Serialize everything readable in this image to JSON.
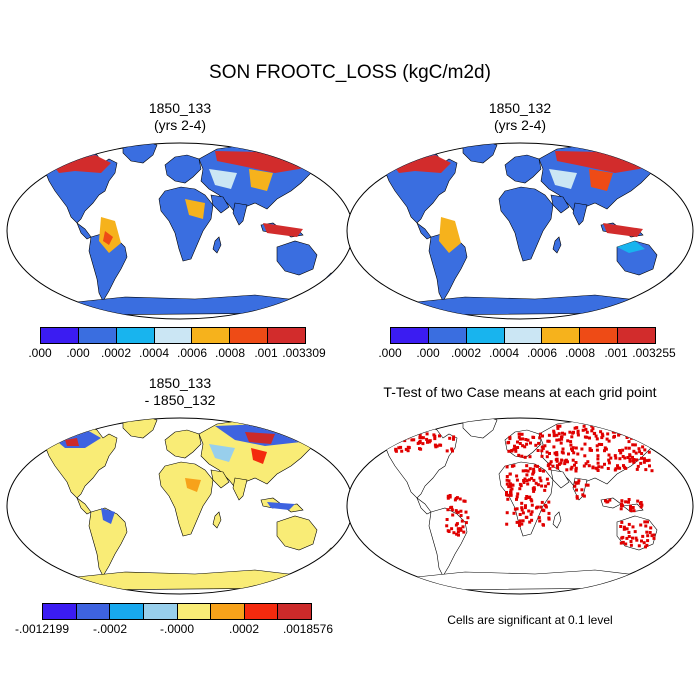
{
  "title": "SON FROOTC_LOSS (kgC/m2d)",
  "panels": {
    "p1": {
      "title_line1": "1850_133",
      "title_line2": "(yrs 2-4)"
    },
    "p2": {
      "title_line1": "1850_132",
      "title_line2": "(yrs 2-4)"
    },
    "p3": {
      "title_line1": "1850_133",
      "title_line2": "- 1850_132"
    },
    "p4": {
      "title": "T-Test of two Case means at each grid point",
      "note": "Cells are significant at 0.1 level"
    }
  },
  "legend1": {
    "colors": [
      "#3b1cf2",
      "#3a6ee0",
      "#18b4ee",
      "#cbe6f4",
      "#f6b21c",
      "#ee4b16",
      "#d22c2c"
    ],
    "labels": [
      ".000",
      ".000",
      ".0002",
      ".0004",
      ".0006",
      ".0008",
      ".001",
      ".003309"
    ]
  },
  "legend2": {
    "colors": [
      "#3b1cf2",
      "#3a6ee0",
      "#18b4ee",
      "#cbe6f4",
      "#f6b21c",
      "#ee4b16",
      "#d22c2c"
    ],
    "labels": [
      ".000",
      ".000",
      ".0002",
      ".0004",
      ".0006",
      ".0008",
      ".001",
      ".003255"
    ]
  },
  "legend3": {
    "colors": [
      "#3b1cf2",
      "#3e63e0",
      "#18a8ee",
      "#98cfec",
      "#f9ec76",
      "#f7a21a",
      "#f42a0e",
      "#cc2a2a"
    ],
    "labels": [
      "-.0012199",
      "-.0002",
      "-.0000",
      ".0002",
      ".0018576"
    ]
  },
  "map_colors": {
    "ocean": "#ffffff",
    "land_base_abs": "#3a6ee0",
    "land_base_diff": "#f9ec76",
    "signif": "#e00000"
  }
}
